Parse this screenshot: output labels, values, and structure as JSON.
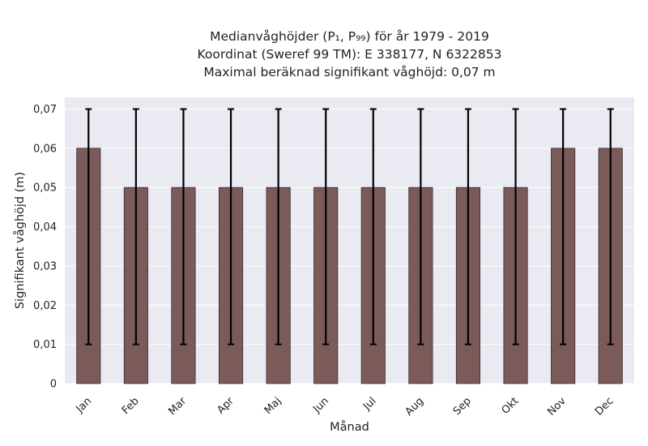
{
  "chart_data": {
    "type": "bar",
    "title_lines": [
      "Medianvåghöjder (P₁, P₉₉) för år 1979 - 2019",
      "Koordinat (Sweref 99 TM): E 338177, N 6322853",
      "Maximal beräknad signifikant våghöjd: 0,07 m"
    ],
    "xlabel": "Månad",
    "ylabel": "Signifikant våghöjd (m)",
    "categories": [
      "Jan",
      "Feb",
      "Mar",
      "Apr",
      "Maj",
      "Jun",
      "Jul",
      "Aug",
      "Sep",
      "Okt",
      "Nov",
      "Dec"
    ],
    "values": [
      0.06,
      0.05,
      0.05,
      0.05,
      0.05,
      0.05,
      0.05,
      0.05,
      0.05,
      0.05,
      0.06,
      0.06
    ],
    "error_low": [
      0.01,
      0.01,
      0.01,
      0.01,
      0.01,
      0.01,
      0.01,
      0.01,
      0.01,
      0.01,
      0.01,
      0.01
    ],
    "error_high": [
      0.07,
      0.07,
      0.07,
      0.07,
      0.07,
      0.07,
      0.07,
      0.07,
      0.07,
      0.07,
      0.07,
      0.07
    ],
    "yticks": [
      "0",
      "0,01",
      "0,02",
      "0,03",
      "0,04",
      "0,05",
      "0,06",
      "0,07"
    ],
    "ylim": [
      0,
      0.073
    ],
    "grid": true,
    "bar_color": "#7b5a5a",
    "bar_edge_color": "#3a2a2a",
    "plot_background": "#eaeaf2",
    "grid_color": "#ffffff"
  }
}
